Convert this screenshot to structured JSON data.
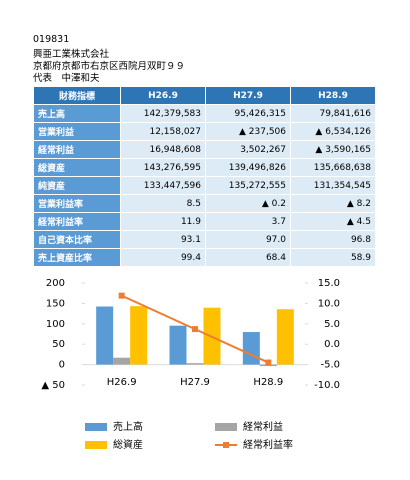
{
  "header": {
    "code": "019831",
    "company": "興亜工業株式会社",
    "address": "京都府京都市右京区西院月双町９９",
    "representative": "代表　中澤和夫"
  },
  "table": {
    "headers": [
      "財務指標",
      "H26.9",
      "H27.9",
      "H28.9"
    ],
    "rows": [
      [
        "売上高",
        "142,379,583",
        "95,426,315",
        "79,841,616"
      ],
      [
        "営業利益",
        "12,158,027",
        "▲ 237,506",
        "▲ 6,534,126"
      ],
      [
        "経常利益",
        "16,948,608",
        "3,502,267",
        "▲ 3,590,165"
      ],
      [
        "総資産",
        "143,276,595",
        "139,496,826",
        "135,668,638"
      ],
      [
        "純資産",
        "133,447,596",
        "135,272,555",
        "131,354,545"
      ],
      [
        "営業利益率",
        "8.5",
        "▲ 0.2",
        "▲ 8.2"
      ],
      [
        "経常利益率",
        "11.9",
        "3.7",
        "▲ 4.5"
      ],
      [
        "自己資本比率",
        "93.1",
        "97.0",
        "96.8"
      ],
      [
        "売上資産比率",
        "99.4",
        "68.4",
        "58.9"
      ]
    ]
  },
  "chart_data": {
    "type": "bar",
    "categories": [
      "H26.9",
      "H27.9",
      "H28.9"
    ],
    "series": [
      {
        "name": "売上高",
        "color": "#5b9bd5",
        "values": [
          142.4,
          95.4,
          79.8
        ]
      },
      {
        "name": "経常利益",
        "color": "#a5a5a5",
        "values": [
          16.9,
          3.5,
          -3.6
        ]
      },
      {
        "name": "総資産",
        "color": "#ffc000",
        "values": [
          143.3,
          139.5,
          135.7
        ]
      },
      {
        "name": "経常利益率",
        "color": "#ed7d31",
        "type": "line",
        "axis": "y2",
        "values": [
          11.9,
          3.7,
          -4.5
        ]
      }
    ],
    "ylim": [
      -50,
      200
    ],
    "yticks": [
      {
        "value": -50,
        "label": "▲ 50"
      },
      0,
      50,
      100,
      150,
      200
    ],
    "y2lim": [
      -10,
      15
    ],
    "y2ticks": [
      {
        "value": -10,
        "label": "-10.0"
      },
      {
        "value": -5,
        "label": "-5.0"
      },
      {
        "value": 0,
        "label": "0.0"
      },
      {
        "value": 5,
        "label": "5.0"
      },
      {
        "value": 10,
        "label": "10.0"
      },
      {
        "value": 15,
        "label": "15.0"
      }
    ],
    "grid": false
  }
}
